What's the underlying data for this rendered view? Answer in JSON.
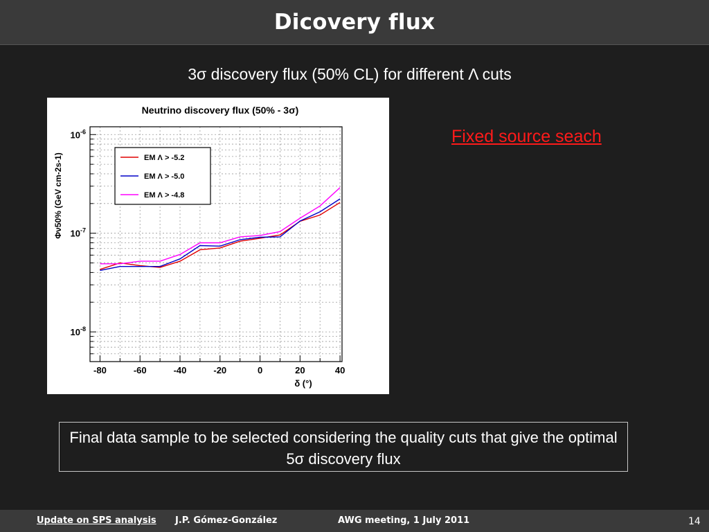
{
  "slide": {
    "title": "Dicovery flux",
    "subtitle": "3σ discovery flux (50% CL) for different Λ cuts",
    "fixed_source": "Fixed source seach",
    "note": "Final data sample to be selected considering the quality cuts that give the optimal 5σ discovery flux"
  },
  "footer": {
    "title": "Update on SPS analysis",
    "author": "J.P. Gómez-González",
    "meeting": "AWG meeting, 1 July 2011",
    "page": "14"
  },
  "chart_data": {
    "type": "line",
    "title": "Neutrino discovery flux (50% - 3σ)",
    "xlabel": "δ (°)",
    "ylabel": "Φν50% (GeV cm-2s-1)",
    "xlim": [
      -85,
      41
    ],
    "ylim": [
      5e-09,
      1.2e-06
    ],
    "yscale": "log",
    "grid": true,
    "legend_position": "top-left",
    "x_ticks": [
      -80,
      -60,
      -40,
      -20,
      0,
      20,
      40
    ],
    "y_ticks": [
      {
        "value": 1e-06,
        "base": "10",
        "exp": "-6"
      },
      {
        "value": 1e-07,
        "base": "10",
        "exp": "-7"
      },
      {
        "value": 1e-08,
        "base": "10",
        "exp": "-8"
      }
    ],
    "x": [
      -80,
      -70,
      -60,
      -50,
      -40,
      -30,
      -20,
      -10,
      0,
      10,
      20,
      30,
      40
    ],
    "series": [
      {
        "name": "EM Λ > -5.2",
        "color": "#e00000",
        "values": [
          4.3e-08,
          5e-08,
          4.7e-08,
          4.5e-08,
          5.2e-08,
          6.8e-08,
          7.1e-08,
          8.3e-08,
          8.9e-08,
          9.6e-08,
          1.32e-07,
          1.53e-07,
          2.05e-07
        ]
      },
      {
        "name": "EM Λ > -5.0",
        "color": "#0000c8",
        "values": [
          4.2e-08,
          4.6e-08,
          4.6e-08,
          4.6e-08,
          5.5e-08,
          7.5e-08,
          7.4e-08,
          8.6e-08,
          9.1e-08,
          9.2e-08,
          1.33e-07,
          1.65e-07,
          2.23e-07
        ]
      },
      {
        "name": "EM Λ > -4.8",
        "color": "#ff00ff",
        "values": [
          4.9e-08,
          4.9e-08,
          5.2e-08,
          5.2e-08,
          6.1e-08,
          8e-08,
          8e-08,
          9.2e-08,
          9.5e-08,
          1.04e-07,
          1.42e-07,
          1.89e-07,
          2.9e-07
        ]
      }
    ]
  }
}
